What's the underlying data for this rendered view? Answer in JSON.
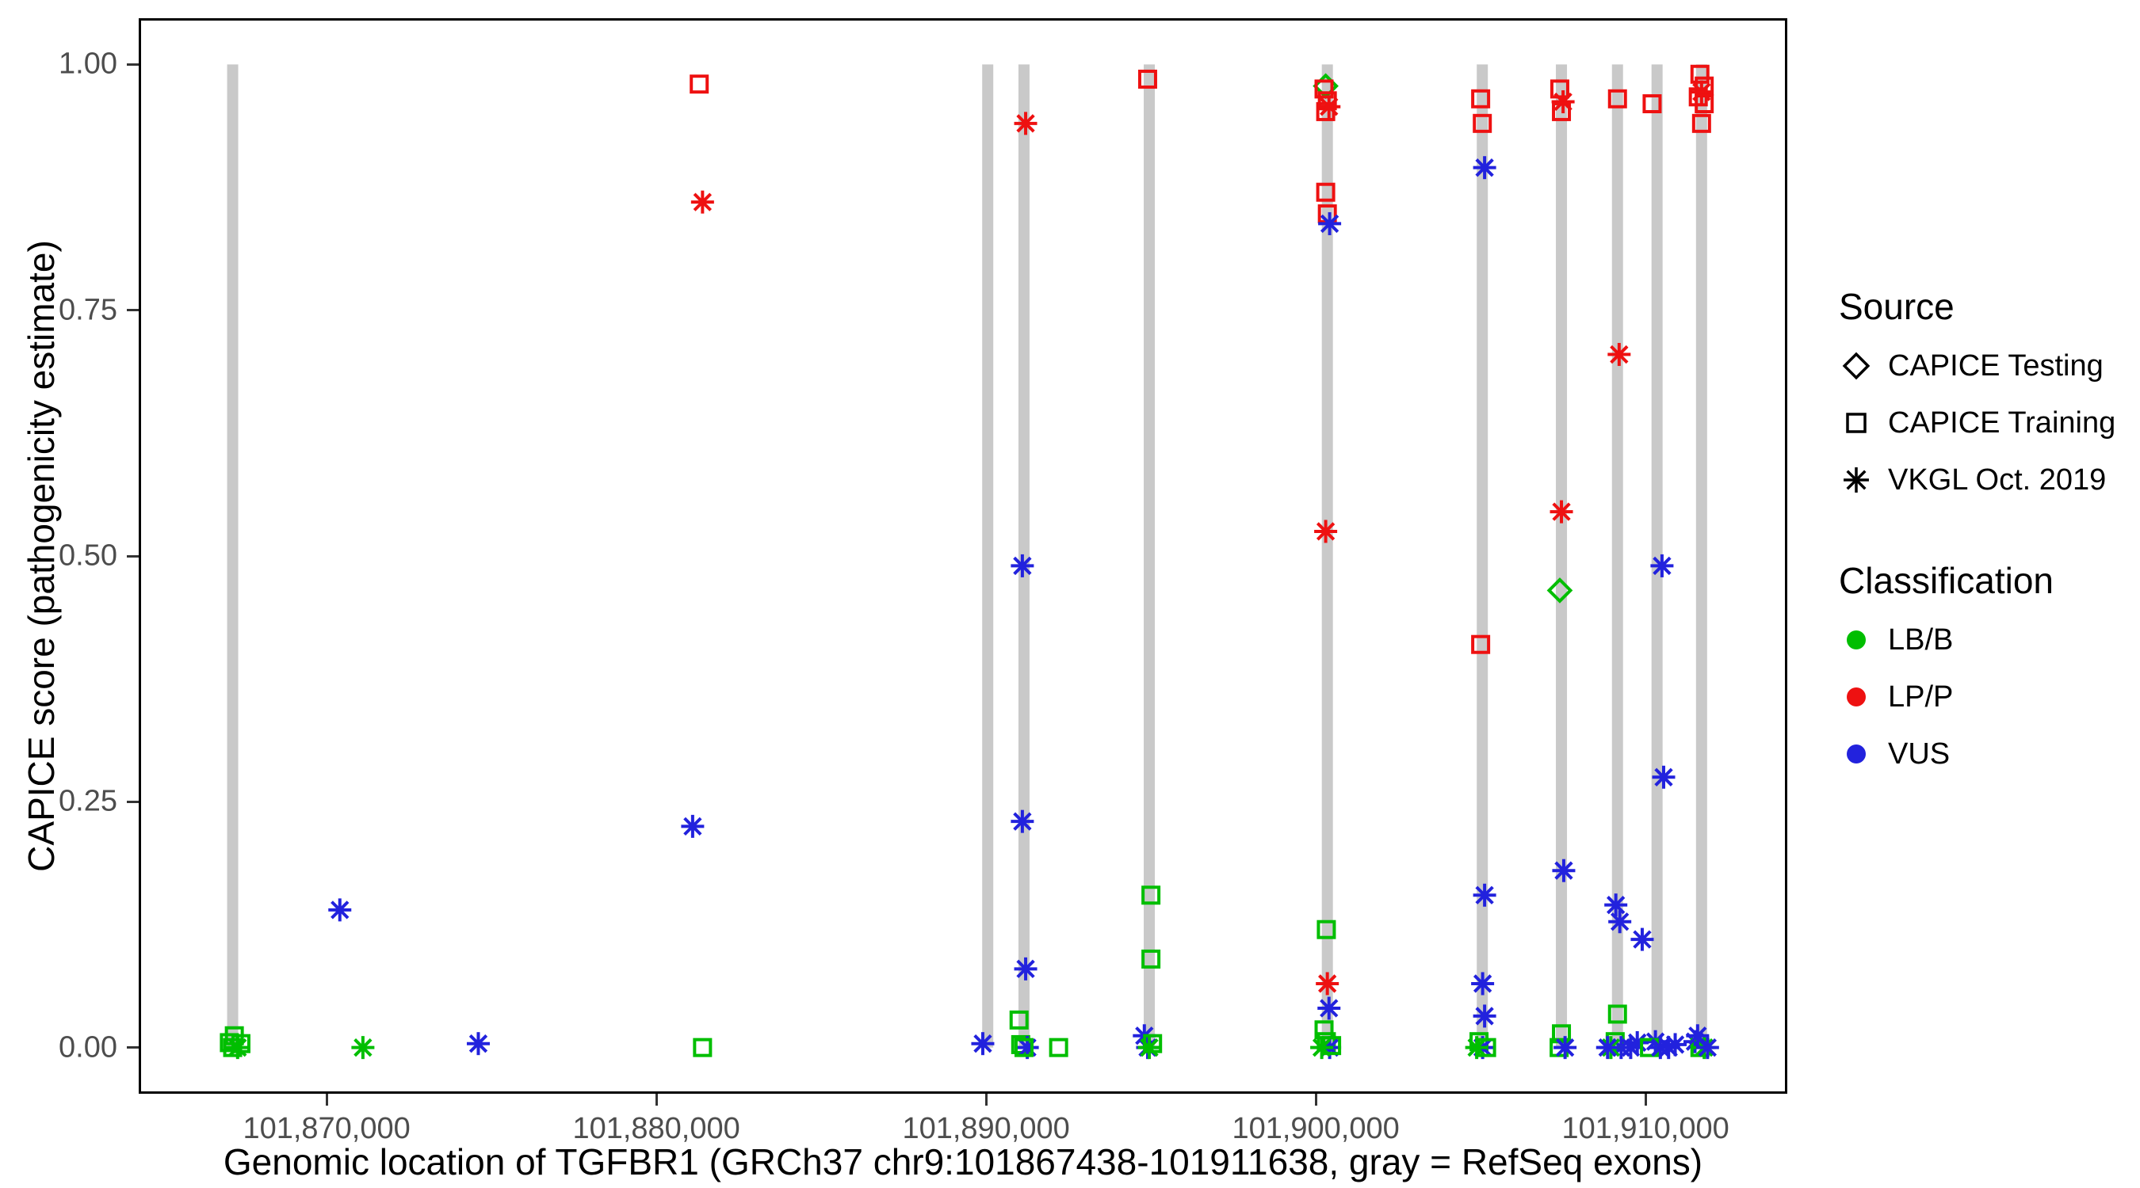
{
  "figure": {
    "x_title": "Genomic location of TGFBR1 (GRCh37 chr9:101867438-101911638, gray = RefSeq exons)",
    "y_title": "CAPICE score (pathogenicity estimate)"
  },
  "legend": {
    "source": {
      "title": "Source",
      "items": [
        {
          "label": "CAPICE Testing",
          "icon": "diamond-open-icon",
          "shape": "diamond"
        },
        {
          "label": "CAPICE Training",
          "icon": "square-open-icon",
          "shape": "square"
        },
        {
          "label": "VKGL Oct. 2019",
          "icon": "asterisk-icon",
          "shape": "asterisk"
        }
      ]
    },
    "classification": {
      "title": "Classification",
      "items": [
        {
          "label": "LB/B",
          "color": "#00BE00"
        },
        {
          "label": "LP/P",
          "color": "#EE1111"
        },
        {
          "label": "VUS",
          "color": "#2222DD"
        }
      ]
    }
  },
  "chart_data": {
    "type": "scatter",
    "title": "",
    "xlabel": "Genomic location of TGFBR1 (GRCh37 chr9:101867438-101911638, gray = RefSeq exons)",
    "ylabel": "CAPICE score (pathogenicity estimate)",
    "x_domain": [
      101864300,
      101914300
    ],
    "y_domain": [
      -0.047,
      1.047
    ],
    "grid": "off",
    "legend_position": "right",
    "x_ticks": [
      {
        "value": 101870000,
        "label": "101,870,000"
      },
      {
        "value": 101880000,
        "label": "101,880,000"
      },
      {
        "value": 101890000,
        "label": "101,890,000"
      },
      {
        "value": 101900000,
        "label": "101,900,000"
      },
      {
        "value": 101910000,
        "label": "101,910,000"
      }
    ],
    "y_ticks": [
      {
        "value": 0.0,
        "label": "0.00"
      },
      {
        "value": 0.25,
        "label": "0.25"
      },
      {
        "value": 0.5,
        "label": "0.50"
      },
      {
        "value": 0.75,
        "label": "0.75"
      },
      {
        "value": 1.0,
        "label": "1.00"
      }
    ],
    "exon_color": "#C9C9C9",
    "exons": [
      101867150,
      101890050,
      101891150,
      101894950,
      101900350,
      101905050,
      101907450,
      101909150,
      101910350,
      101911700
    ],
    "source_labels": {
      "test": "CAPICE Testing",
      "train": "CAPICE Training",
      "vkgl": "VKGL Oct. 2019"
    },
    "source_shapes": {
      "test": "diamond",
      "train": "square",
      "vkgl": "asterisk"
    },
    "class_colors": {
      "LB/B": "#00BE00",
      "LP/P": "#EE1111",
      "VUS": "#2222DD"
    },
    "points": [
      {
        "x": 101867050,
        "y": 0.005,
        "src": "train",
        "cls": "LB/B"
      },
      {
        "x": 101867200,
        "y": 0.012,
        "src": "train",
        "cls": "LB/B"
      },
      {
        "x": 101867300,
        "y": 0.0,
        "src": "vkgl",
        "cls": "LB/B"
      },
      {
        "x": 101867400,
        "y": 0.004,
        "src": "train",
        "cls": "LB/B"
      },
      {
        "x": 101867150,
        "y": 0.0,
        "src": "train",
        "cls": "LB/B"
      },
      {
        "x": 101870400,
        "y": 0.14,
        "src": "vkgl",
        "cls": "VUS"
      },
      {
        "x": 101871100,
        "y": 0.0,
        "src": "vkgl",
        "cls": "LB/B"
      },
      {
        "x": 101874600,
        "y": 0.004,
        "src": "vkgl",
        "cls": "VUS"
      },
      {
        "x": 101881300,
        "y": 0.98,
        "src": "train",
        "cls": "LP/P"
      },
      {
        "x": 101881400,
        "y": 0.86,
        "src": "vkgl",
        "cls": "LP/P"
      },
      {
        "x": 101881100,
        "y": 0.225,
        "src": "vkgl",
        "cls": "VUS"
      },
      {
        "x": 101881400,
        "y": 0.0,
        "src": "train",
        "cls": "LB/B"
      },
      {
        "x": 101889900,
        "y": 0.004,
        "src": "vkgl",
        "cls": "VUS"
      },
      {
        "x": 101891200,
        "y": 0.94,
        "src": "vkgl",
        "cls": "LP/P"
      },
      {
        "x": 101891100,
        "y": 0.49,
        "src": "vkgl",
        "cls": "VUS"
      },
      {
        "x": 101891100,
        "y": 0.23,
        "src": "vkgl",
        "cls": "VUS"
      },
      {
        "x": 101891200,
        "y": 0.08,
        "src": "vkgl",
        "cls": "VUS"
      },
      {
        "x": 101891000,
        "y": 0.028,
        "src": "train",
        "cls": "LB/B"
      },
      {
        "x": 101891050,
        "y": 0.003,
        "src": "train",
        "cls": "LB/B"
      },
      {
        "x": 101891250,
        "y": 0.0,
        "src": "vkgl",
        "cls": "VUS"
      },
      {
        "x": 101891150,
        "y": 0.0,
        "src": "train",
        "cls": "LB/B"
      },
      {
        "x": 101892200,
        "y": 0.0,
        "src": "train",
        "cls": "LB/B"
      },
      {
        "x": 101894900,
        "y": 0.985,
        "src": "train",
        "cls": "LP/P"
      },
      {
        "x": 101895000,
        "y": 0.155,
        "src": "train",
        "cls": "LB/B"
      },
      {
        "x": 101895000,
        "y": 0.09,
        "src": "train",
        "cls": "LB/B"
      },
      {
        "x": 101894800,
        "y": 0.012,
        "src": "vkgl",
        "cls": "VUS"
      },
      {
        "x": 101894900,
        "y": 0.0,
        "src": "vkgl",
        "cls": "VUS"
      },
      {
        "x": 101895050,
        "y": 0.004,
        "src": "train",
        "cls": "LB/B"
      },
      {
        "x": 101894950,
        "y": 0.0,
        "src": "vkgl",
        "cls": "LB/B"
      },
      {
        "x": 101900300,
        "y": 0.978,
        "src": "test",
        "cls": "LB/B"
      },
      {
        "x": 101900250,
        "y": 0.975,
        "src": "train",
        "cls": "LP/P"
      },
      {
        "x": 101900350,
        "y": 0.963,
        "src": "train",
        "cls": "LP/P"
      },
      {
        "x": 101900300,
        "y": 0.952,
        "src": "train",
        "cls": "LP/P"
      },
      {
        "x": 101900400,
        "y": 0.957,
        "src": "vkgl",
        "cls": "LP/P"
      },
      {
        "x": 101900300,
        "y": 0.87,
        "src": "train",
        "cls": "LP/P"
      },
      {
        "x": 101900350,
        "y": 0.848,
        "src": "train",
        "cls": "LP/P"
      },
      {
        "x": 101900420,
        "y": 0.838,
        "src": "vkgl",
        "cls": "VUS"
      },
      {
        "x": 101900300,
        "y": 0.525,
        "src": "vkgl",
        "cls": "LP/P"
      },
      {
        "x": 101900320,
        "y": 0.12,
        "src": "train",
        "cls": "LB/B"
      },
      {
        "x": 101900350,
        "y": 0.065,
        "src": "vkgl",
        "cls": "LP/P"
      },
      {
        "x": 101900400,
        "y": 0.04,
        "src": "vkgl",
        "cls": "VUS"
      },
      {
        "x": 101900250,
        "y": 0.018,
        "src": "train",
        "cls": "LB/B"
      },
      {
        "x": 101900320,
        "y": 0.006,
        "src": "train",
        "cls": "LB/B"
      },
      {
        "x": 101900420,
        "y": 0.0,
        "src": "vkgl",
        "cls": "VUS"
      },
      {
        "x": 101900180,
        "y": 0.0,
        "src": "vkgl",
        "cls": "LB/B"
      },
      {
        "x": 101900480,
        "y": 0.002,
        "src": "train",
        "cls": "LB/B"
      },
      {
        "x": 101905000,
        "y": 0.965,
        "src": "train",
        "cls": "LP/P"
      },
      {
        "x": 101905050,
        "y": 0.94,
        "src": "train",
        "cls": "LP/P"
      },
      {
        "x": 101905120,
        "y": 0.895,
        "src": "vkgl",
        "cls": "VUS"
      },
      {
        "x": 101905000,
        "y": 0.41,
        "src": "train",
        "cls": "LP/P"
      },
      {
        "x": 101905120,
        "y": 0.155,
        "src": "vkgl",
        "cls": "VUS"
      },
      {
        "x": 101905060,
        "y": 0.065,
        "src": "vkgl",
        "cls": "VUS"
      },
      {
        "x": 101905120,
        "y": 0.032,
        "src": "vkgl",
        "cls": "VUS"
      },
      {
        "x": 101904950,
        "y": 0.006,
        "src": "train",
        "cls": "LB/B"
      },
      {
        "x": 101905060,
        "y": 0.0,
        "src": "vkgl",
        "cls": "VUS"
      },
      {
        "x": 101905180,
        "y": 0.0,
        "src": "train",
        "cls": "LB/B"
      },
      {
        "x": 101904880,
        "y": 0.0,
        "src": "vkgl",
        "cls": "LB/B"
      },
      {
        "x": 101907400,
        "y": 0.975,
        "src": "train",
        "cls": "LP/P"
      },
      {
        "x": 101907500,
        "y": 0.962,
        "src": "vkgl",
        "cls": "LP/P"
      },
      {
        "x": 101907450,
        "y": 0.952,
        "src": "train",
        "cls": "LP/P"
      },
      {
        "x": 101907450,
        "y": 0.545,
        "src": "vkgl",
        "cls": "LP/P"
      },
      {
        "x": 101907400,
        "y": 0.465,
        "src": "test",
        "cls": "LB/B"
      },
      {
        "x": 101907520,
        "y": 0.18,
        "src": "vkgl",
        "cls": "VUS"
      },
      {
        "x": 101907450,
        "y": 0.014,
        "src": "train",
        "cls": "LB/B"
      },
      {
        "x": 101907380,
        "y": 0.0,
        "src": "train",
        "cls": "LB/B"
      },
      {
        "x": 101907560,
        "y": 0.0,
        "src": "vkgl",
        "cls": "VUS"
      },
      {
        "x": 101909150,
        "y": 0.965,
        "src": "train",
        "cls": "LP/P"
      },
      {
        "x": 101909200,
        "y": 0.705,
        "src": "vkgl",
        "cls": "LP/P"
      },
      {
        "x": 101909100,
        "y": 0.145,
        "src": "vkgl",
        "cls": "VUS"
      },
      {
        "x": 101909220,
        "y": 0.128,
        "src": "vkgl",
        "cls": "VUS"
      },
      {
        "x": 101909150,
        "y": 0.034,
        "src": "train",
        "cls": "LB/B"
      },
      {
        "x": 101909080,
        "y": 0.006,
        "src": "train",
        "cls": "LB/B"
      },
      {
        "x": 101909260,
        "y": 0.0,
        "src": "vkgl",
        "cls": "VUS"
      },
      {
        "x": 101908950,
        "y": 0.0,
        "src": "vkgl",
        "cls": "LB/B"
      },
      {
        "x": 101908850,
        "y": 0.0,
        "src": "vkgl",
        "cls": "VUS"
      },
      {
        "x": 101909550,
        "y": 0.0,
        "src": "vkgl",
        "cls": "VUS"
      },
      {
        "x": 101909750,
        "y": 0.005,
        "src": "vkgl",
        "cls": "VUS"
      },
      {
        "x": 101909900,
        "y": 0.11,
        "src": "vkgl",
        "cls": "VUS"
      },
      {
        "x": 101910200,
        "y": 0.96,
        "src": "train",
        "cls": "LP/P"
      },
      {
        "x": 101910500,
        "y": 0.49,
        "src": "vkgl",
        "cls": "VUS"
      },
      {
        "x": 101910550,
        "y": 0.275,
        "src": "vkgl",
        "cls": "VUS"
      },
      {
        "x": 101910300,
        "y": 0.006,
        "src": "vkgl",
        "cls": "VUS"
      },
      {
        "x": 101910120,
        "y": 0.0,
        "src": "train",
        "cls": "LB/B"
      },
      {
        "x": 101910450,
        "y": 0.0,
        "src": "vkgl",
        "cls": "VUS"
      },
      {
        "x": 101910700,
        "y": 0.0,
        "src": "vkgl",
        "cls": "VUS"
      },
      {
        "x": 101910900,
        "y": 0.003,
        "src": "vkgl",
        "cls": "VUS"
      },
      {
        "x": 101911650,
        "y": 0.99,
        "src": "train",
        "cls": "LP/P"
      },
      {
        "x": 101911780,
        "y": 0.978,
        "src": "train",
        "cls": "LP/P"
      },
      {
        "x": 101911700,
        "y": 0.972,
        "src": "vkgl",
        "cls": "LP/P"
      },
      {
        "x": 101911600,
        "y": 0.967,
        "src": "train",
        "cls": "LP/P"
      },
      {
        "x": 101911780,
        "y": 0.96,
        "src": "train",
        "cls": "LP/P"
      },
      {
        "x": 101911700,
        "y": 0.94,
        "src": "train",
        "cls": "LP/P"
      },
      {
        "x": 101911500,
        "y": 0.006,
        "src": "vkgl",
        "cls": "VUS"
      },
      {
        "x": 101911650,
        "y": 0.0,
        "src": "train",
        "cls": "LB/B"
      },
      {
        "x": 101911780,
        "y": 0.0,
        "src": "vkgl",
        "cls": "LB/B"
      },
      {
        "x": 101911880,
        "y": 0.0,
        "src": "vkgl",
        "cls": "VUS"
      },
      {
        "x": 101911580,
        "y": 0.012,
        "src": "vkgl",
        "cls": "VUS"
      }
    ]
  }
}
